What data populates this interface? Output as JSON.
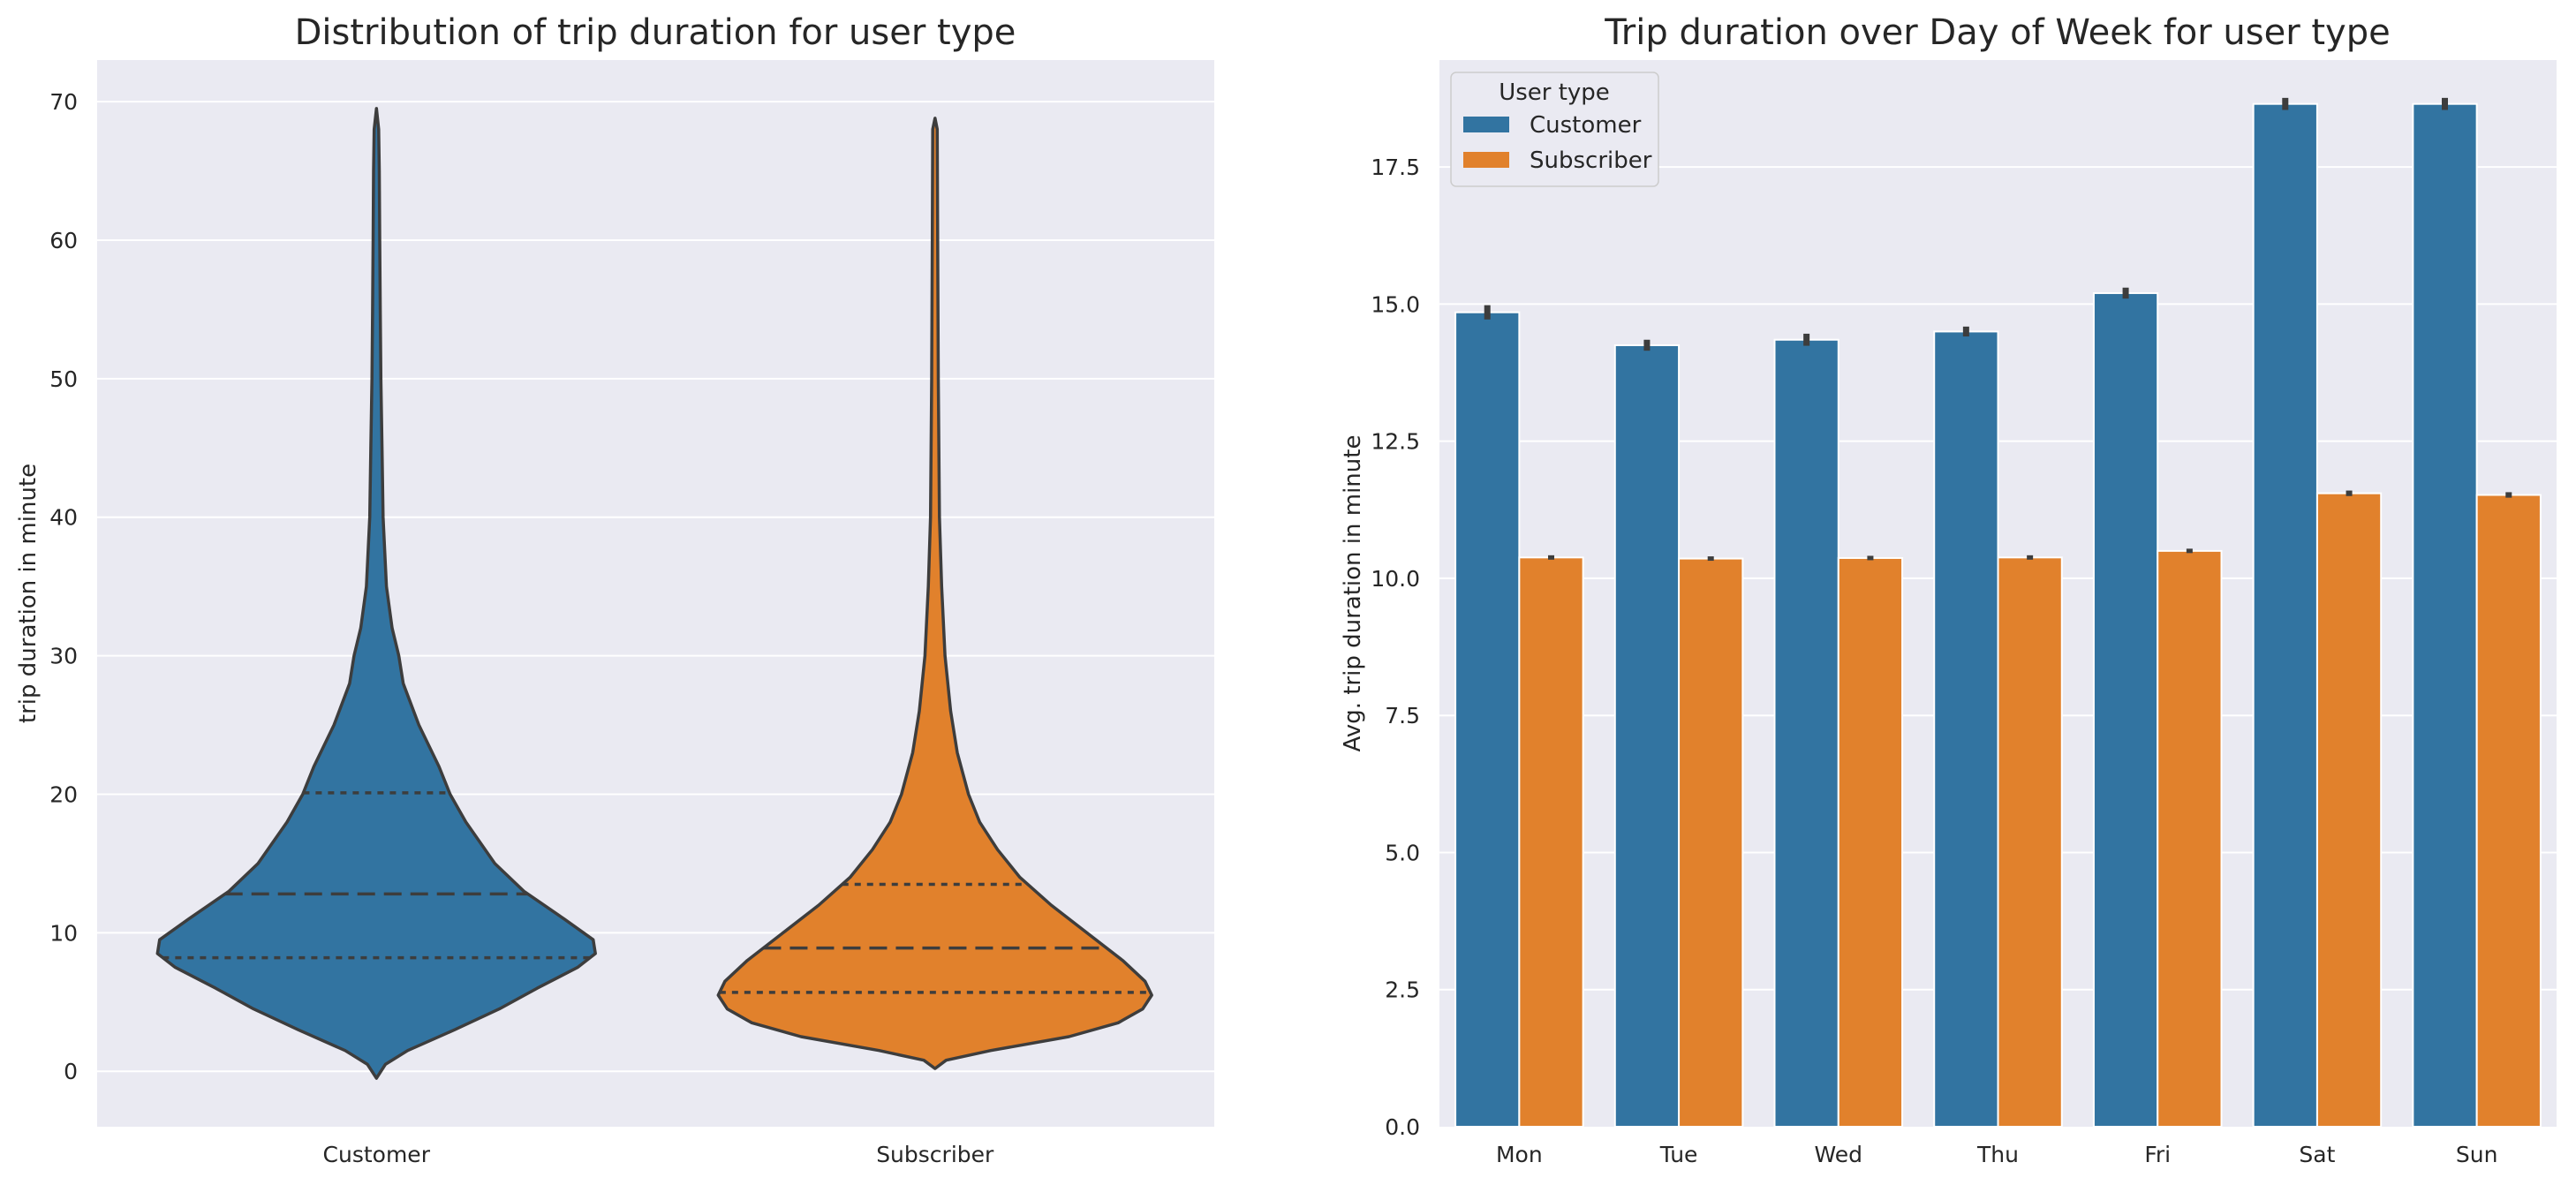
{
  "chart_data": [
    {
      "type": "violin",
      "title": "Distribution of trip duration for user type",
      "xlabel": "",
      "ylabel": "trip duration in minute",
      "ylim": [
        -4,
        73
      ],
      "yticks": [
        0,
        10,
        20,
        30,
        40,
        50,
        60,
        70
      ],
      "categories": [
        "Customer",
        "Subscriber"
      ],
      "colors": [
        "#3274a1",
        "#e1812c"
      ],
      "grid": true,
      "series": [
        {
          "min": -0.5,
          "max": 69.5,
          "quartiles": [
            8.2,
            12.8,
            20.1
          ],
          "profile": [
            [
              -0.5,
              0.0
            ],
            [
              0.5,
              0.04
            ],
            [
              1.5,
              0.14
            ],
            [
              3,
              0.35
            ],
            [
              4.5,
              0.55
            ],
            [
              6,
              0.72
            ],
            [
              7.5,
              0.9
            ],
            [
              8.5,
              0.98
            ],
            [
              9.5,
              0.97
            ],
            [
              11,
              0.84
            ],
            [
              13,
              0.66
            ],
            [
              15,
              0.53
            ],
            [
              18,
              0.4
            ],
            [
              20,
              0.33
            ],
            [
              22,
              0.28
            ],
            [
              25,
              0.19
            ],
            [
              28,
              0.12
            ],
            [
              30,
              0.1
            ],
            [
              32,
              0.07
            ],
            [
              35,
              0.045
            ],
            [
              40,
              0.03
            ],
            [
              45,
              0.025
            ],
            [
              50,
              0.02
            ],
            [
              55,
              0.017
            ],
            [
              60,
              0.015
            ],
            [
              65,
              0.013
            ],
            [
              68,
              0.01
            ],
            [
              69.5,
              0.0
            ]
          ]
        },
        {
          "min": 0.2,
          "max": 68.8,
          "quartiles": [
            5.7,
            8.9,
            13.5
          ],
          "profile": [
            [
              0.2,
              0.0
            ],
            [
              0.8,
              0.05
            ],
            [
              1.5,
              0.25
            ],
            [
              2.5,
              0.6
            ],
            [
              3.5,
              0.82
            ],
            [
              4.5,
              0.93
            ],
            [
              5.5,
              0.97
            ],
            [
              6.5,
              0.94
            ],
            [
              8,
              0.84
            ],
            [
              10,
              0.68
            ],
            [
              12,
              0.52
            ],
            [
              14,
              0.38
            ],
            [
              16,
              0.28
            ],
            [
              18,
              0.2
            ],
            [
              20,
              0.15
            ],
            [
              23,
              0.1
            ],
            [
              26,
              0.07
            ],
            [
              30,
              0.045
            ],
            [
              35,
              0.03
            ],
            [
              40,
              0.02
            ],
            [
              50,
              0.015
            ],
            [
              60,
              0.012
            ],
            [
              68,
              0.01
            ],
            [
              68.8,
              0.0
            ]
          ]
        }
      ]
    },
    {
      "type": "bar",
      "title": "Trip duration over Day of Week for user type",
      "xlabel": "",
      "ylabel": "Avg. trip duration in minute",
      "ylim": [
        0,
        19.45
      ],
      "yticks": [
        "0.0",
        "2.5",
        "5.0",
        "7.5",
        "10.0",
        "12.5",
        "15.0",
        "17.5"
      ],
      "categories": [
        "Mon",
        "Tue",
        "Wed",
        "Thu",
        "Fri",
        "Sat",
        "Sun"
      ],
      "grid": true,
      "legend": {
        "title": "User type",
        "placement": "top-left"
      },
      "series": [
        {
          "name": "Customer",
          "color": "#3274a1",
          "values": [
            14.85,
            14.25,
            14.35,
            14.5,
            15.2,
            18.65,
            18.65
          ],
          "errors": [
            0.13,
            0.1,
            0.11,
            0.09,
            0.1,
            0.11,
            0.11
          ]
        },
        {
          "name": "Subscriber",
          "color": "#e1812c",
          "values": [
            10.38,
            10.36,
            10.37,
            10.38,
            10.5,
            11.55,
            11.52
          ],
          "errors": [
            0.04,
            0.04,
            0.04,
            0.04,
            0.04,
            0.05,
            0.05
          ]
        }
      ]
    }
  ]
}
